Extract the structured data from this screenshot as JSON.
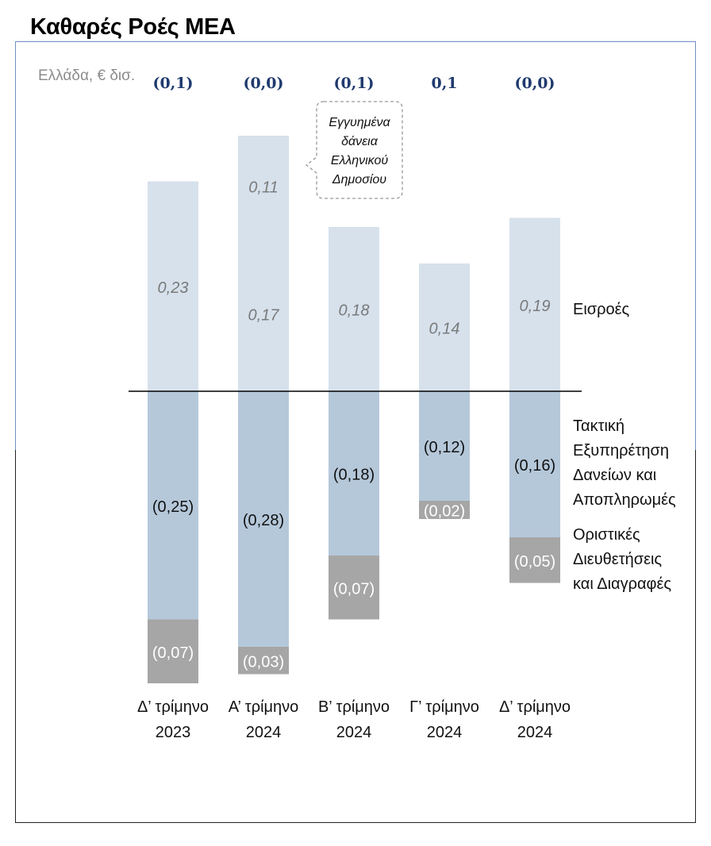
{
  "title": "Καθαρές Ροές ΜΕΑ",
  "chart_data": {
    "type": "bar",
    "stacked": true,
    "unit_label": "Ελλάδα, € δισ.",
    "categories": [
      [
        "Δ’ τρίμηνο",
        "2023"
      ],
      [
        "Α’ τρίμηνο",
        "2024"
      ],
      [
        "Β’ τρίμηνο",
        "2024"
      ],
      [
        "Γ’ τρίμηνο",
        "2024"
      ],
      [
        "Δ’ τρίμηνο",
        "2024"
      ]
    ],
    "net_labels": [
      "(0,1)",
      "(0,0)",
      "(0,1)",
      "0,1",
      "(0,0)"
    ],
    "series": [
      {
        "name": "Εισροές",
        "values": [
          0.23,
          0.17,
          0.18,
          0.14,
          0.19
        ],
        "labels": [
          "0,23",
          "0,17",
          "0,18",
          "0,14",
          "0,19"
        ],
        "color": "#d6e1ec"
      },
      {
        "name": "Εγγυημένα δάνεια Ελληνικού Δημοσίου",
        "values": [
          0,
          0.11,
          0,
          0,
          0
        ],
        "labels": [
          "",
          "0,11",
          "",
          "",
          ""
        ],
        "color": "#d6e1ec"
      },
      {
        "name": "Τακτική Εξυπηρέτηση Δανείων και Αποπληρωμές",
        "values": [
          -0.25,
          -0.28,
          -0.18,
          -0.12,
          -0.16
        ],
        "labels": [
          "(0,25)",
          "(0,28)",
          "(0,18)",
          "(0,12)",
          "(0,16)"
        ],
        "color": "#b5c8da"
      },
      {
        "name": "Οριστικές Διευθετήσεις και Διαγραφές",
        "values": [
          -0.07,
          -0.03,
          -0.07,
          -0.02,
          -0.05
        ],
        "labels": [
          "(0,07)",
          "(0,03)",
          "(0,07)",
          "(0,02)",
          "(0,05)"
        ],
        "color": "#a6a6a6"
      }
    ],
    "legend": {
      "inflows": [
        "Εισροές"
      ],
      "servicing": [
        "Τακτική",
        "Εξυπηρέτηση",
        "Δανείων και",
        "Αποπληρωμές"
      ],
      "writeoffs": [
        "Οριστικές",
        "Διευθετήσεις",
        "και Διαγραφές"
      ]
    },
    "annotation": [
      "Εγγυημένα",
      "δάνεια",
      "Ελληνικού",
      "Δημοσίου"
    ],
    "legend_position": "right"
  }
}
